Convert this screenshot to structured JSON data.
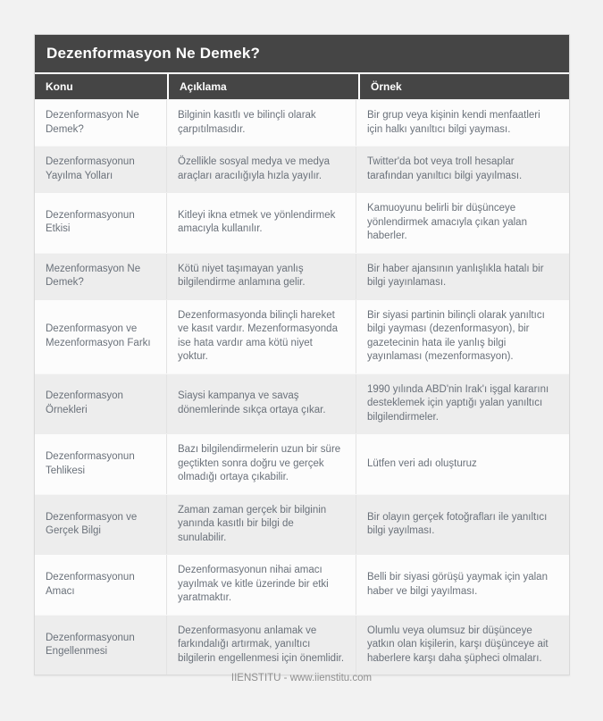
{
  "page": {
    "title": "Dezenformasyon Ne Demek?",
    "footer": "IIENSTITU - www.iienstitu.com"
  },
  "colors": {
    "header_bg": "#454545",
    "header_text": "#ffffff",
    "row_bg": "#fcfcfc",
    "row_alt_bg": "#ededed",
    "body_text": "#6a717a",
    "footer_text": "#8f8f8f",
    "page_bg": "#f2f2f2"
  },
  "table": {
    "columns": [
      "Konu",
      "Açıklama",
      "Örnek"
    ],
    "rows": [
      {
        "konu": "Dezenformasyon Ne Demek?",
        "aciklama": "Bilginin kasıtlı ve bilinçli olarak çarpıtılmasıdır.",
        "ornek": "Bir grup veya kişinin kendi menfaatleri için halkı yanıltıcı bilgi yayması."
      },
      {
        "konu": "Dezenformasyonun Yayılma Yolları",
        "aciklama": "Özellikle sosyal medya ve medya araçları aracılığıyla hızla yayılır.",
        "ornek": "Twitter'da bot veya troll hesaplar tarafından yanıltıcı bilgi yayılması."
      },
      {
        "konu": "Dezenformasyonun Etkisi",
        "aciklama": "Kitleyi ikna etmek ve yönlendirmek amacıyla kullanılır.",
        "ornek": "Kamuoyunu belirli bir düşünceye yönlendirmek amacıyla çıkan yalan haberler."
      },
      {
        "konu": "Mezenformasyon Ne Demek?",
        "aciklama": "Kötü niyet taşımayan yanlış bilgilendirme anlamına gelir.",
        "ornek": "Bir haber ajansının yanlışlıkla hatalı bir bilgi yayınlaması."
      },
      {
        "konu": "Dezenformasyon ve Mezenformasyon Farkı",
        "aciklama": "Dezenformasyonda bilinçli hareket ve kasıt vardır. Mezenformasyonda ise hata vardır ama kötü niyet yoktur.",
        "ornek": "Bir siyasi partinin bilinçli olarak yanıltıcı bilgi yayması (dezenformasyon), bir gazetecinin hata ile yanlış bilgi yayınlaması (mezenformasyon)."
      },
      {
        "konu": "Dezenformasyon Örnekleri",
        "aciklama": "Siaysi kampanya ve savaş dönemlerinde sıkça ortaya çıkar.",
        "ornek": "1990 yılında ABD'nin Irak'ı işgal kararını desteklemek için yaptığı yalan yanıltıcı bilgilendirmeler."
      },
      {
        "konu": "Dezenformasyonun Tehlikesi",
        "aciklama": "Bazı bilgilendirmelerin uzun bir süre geçtikten sonra doğru ve gerçek olmadığı ortaya çıkabilir.",
        "ornek": "Lütfen veri adı oluşturuz"
      },
      {
        "konu": "Dezenformasyon ve Gerçek Bilgi",
        "aciklama": "Zaman zaman gerçek bir bilginin yanında kasıtlı bir bilgi de sunulabilir.",
        "ornek": "Bir olayın gerçek fotoğrafları ile yanıltıcı bilgi yayılması."
      },
      {
        "konu": "Dezenformasyonun Amacı",
        "aciklama": "Dezenformasyonun nihai amacı yayılmak ve kitle üzerinde bir etki yaratmaktır.",
        "ornek": "Belli bir siyasi görüşü yaymak için yalan haber ve bilgi yayılması."
      },
      {
        "konu": "Dezenformasyonun Engellenmesi",
        "aciklama": "Dezenformasyonu anlamak ve farkındalığı artırmak, yanıltıcı bilgilerin engellenmesi için önemlidir.",
        "ornek": "Olumlu veya olumsuz bir düşünceye yatkın olan kişilerin, karşı düşünceye ait haberlere karşı daha şüpheci olmaları."
      }
    ]
  }
}
